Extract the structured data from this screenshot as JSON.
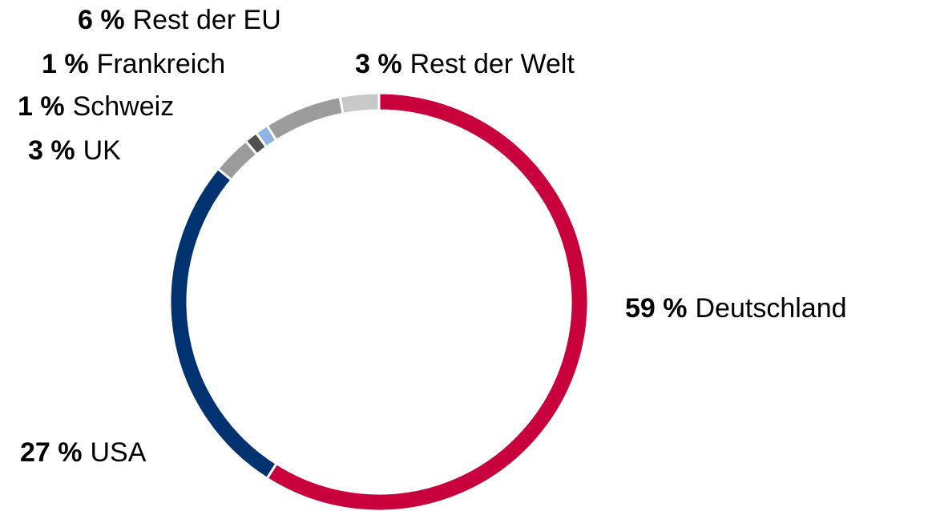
{
  "chart_data": {
    "type": "donut",
    "categories": [
      "Deutschland",
      "USA",
      "UK",
      "Schweiz",
      "Frankreich",
      "Rest der EU",
      "Rest der Welt"
    ],
    "values": [
      59,
      27,
      3,
      1,
      1,
      6,
      3
    ],
    "value_labels": [
      "59 %",
      "27 %",
      "3 %",
      "1 %",
      "1 %",
      "6 %",
      "3 %"
    ],
    "colors": [
      "#c8003c",
      "#003370",
      "#9b9b9b",
      "#505050",
      "#8fb4e3",
      "#9b9b9b",
      "#c8c8c8"
    ]
  }
}
